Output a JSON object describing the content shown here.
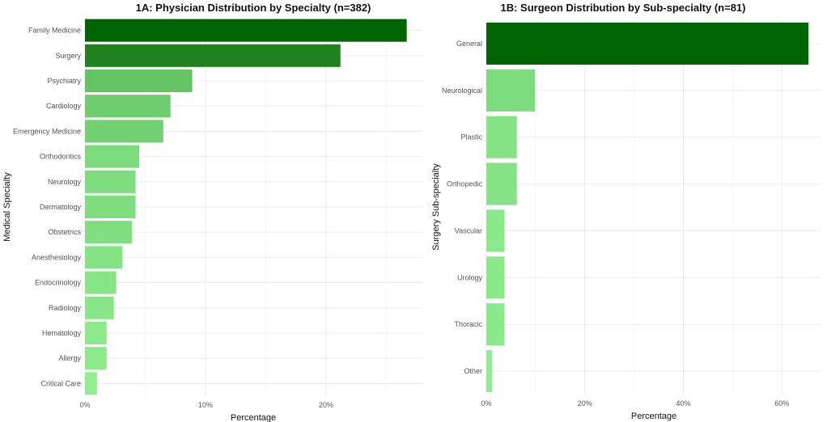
{
  "chart_data": [
    {
      "type": "bar",
      "orientation": "horizontal",
      "title": "1A: Physician Distribution by Specialty (n=382)",
      "xlabel": "Percentage",
      "ylabel": "Medical Specialty",
      "xlim": [
        0,
        28
      ],
      "xticks": [
        0,
        10,
        20
      ],
      "xtick_labels": [
        "0%",
        "10%",
        "20%"
      ],
      "grid": true,
      "color_scale": [
        "#90EE90",
        "#006400"
      ],
      "categories": [
        "Family Medicine",
        "Surgery",
        "Psychiatry",
        "Cardiology",
        "Emergency Medicine",
        "Orthodontics",
        "Neurology",
        "Dermatology",
        "Obstetrics",
        "Anesthesiology",
        "Endocrinology",
        "Radiology",
        "Hematology",
        "Allergy",
        "Critical Care"
      ],
      "values": [
        26.7,
        21.2,
        8.9,
        7.1,
        6.5,
        4.5,
        4.2,
        4.2,
        3.9,
        3.1,
        2.6,
        2.4,
        1.8,
        1.8,
        1.0
      ]
    },
    {
      "type": "bar",
      "orientation": "horizontal",
      "title": "1B: Surgeon Distribution by Sub-specialty (n=81)",
      "xlabel": "Percentage",
      "ylabel": "Surgery Sub-specialty",
      "xlim": [
        0,
        68
      ],
      "xticks": [
        0,
        20,
        40,
        60
      ],
      "xtick_labels": [
        "0%",
        "20%",
        "40%",
        "60%"
      ],
      "grid": true,
      "color_scale": [
        "#90EE90",
        "#006400"
      ],
      "categories": [
        "General",
        "Neurological",
        "Plastic",
        "Orthopedic",
        "Vascular",
        "Urology",
        "Thoracic",
        "Other"
      ],
      "values": [
        65.4,
        9.9,
        6.2,
        6.2,
        3.7,
        3.7,
        3.7,
        1.2
      ]
    }
  ]
}
